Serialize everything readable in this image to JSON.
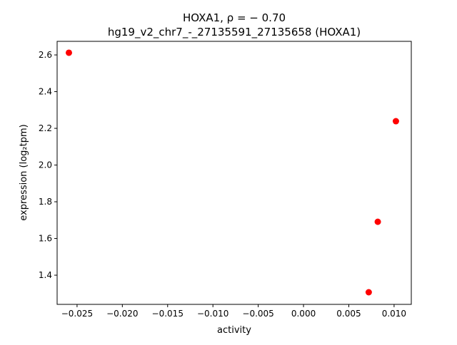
{
  "chart_data": {
    "type": "scatter",
    "title_line1": "HOXA1, ρ = − 0.70",
    "title_line2": "hg19_v2_chr7_-_27135591_27135658 (HOXA1)",
    "xlabel": "activity",
    "ylabel": "expression (log₂tpm)",
    "xlim": [
      -0.0272,
      0.0119
    ],
    "ylim": [
      1.241,
      2.674
    ],
    "xticks": [
      -0.025,
      -0.02,
      -0.015,
      -0.01,
      -0.005,
      0.0,
      0.005,
      0.01
    ],
    "xtick_labels": [
      "−0.025",
      "−0.020",
      "−0.015",
      "−0.010",
      "−0.005",
      "0.000",
      "0.005",
      "0.010"
    ],
    "yticks": [
      1.4,
      1.6,
      1.8,
      2.0,
      2.2,
      2.4,
      2.6
    ],
    "ytick_labels": [
      "1.4",
      "1.6",
      "1.8",
      "2.0",
      "2.2",
      "2.4",
      "2.6"
    ],
    "grid": false,
    "point_color": "#ff0000",
    "points": [
      {
        "x": -0.0259,
        "y": 2.612
      },
      {
        "x": 0.0102,
        "y": 2.239
      },
      {
        "x": 0.0082,
        "y": 1.691
      },
      {
        "x": 0.0072,
        "y": 1.307
      }
    ]
  }
}
